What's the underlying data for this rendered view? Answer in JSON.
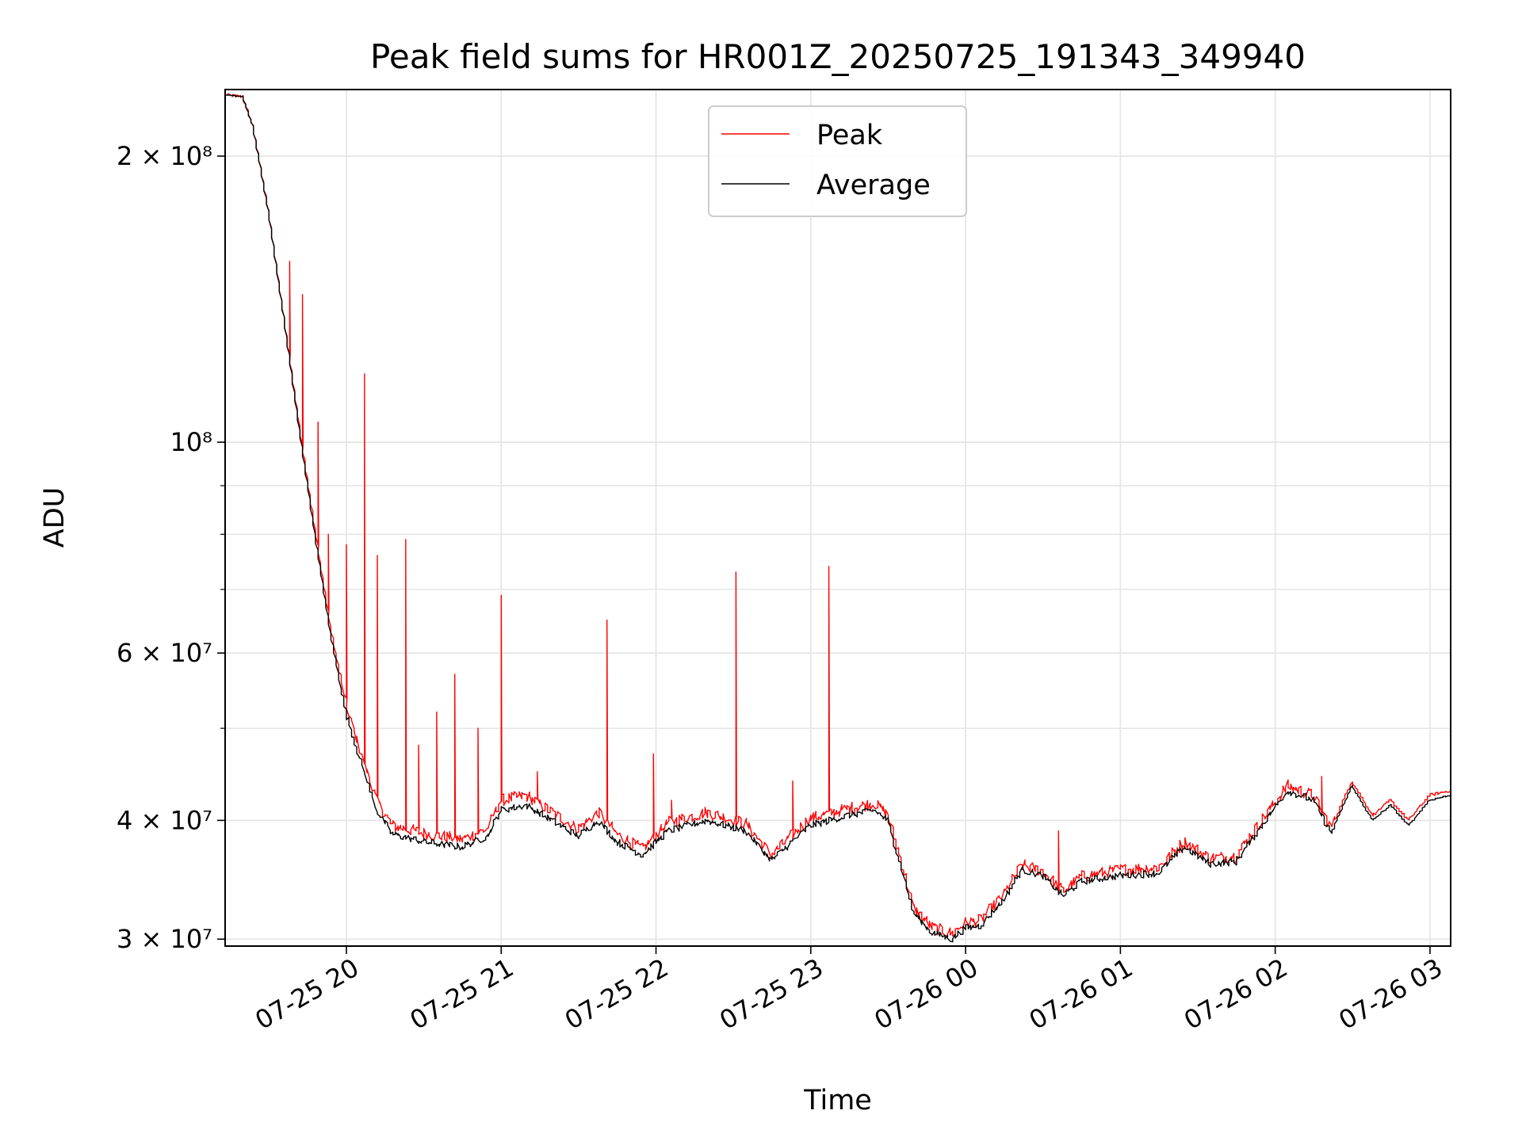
{
  "chart_data": {
    "type": "line",
    "title": "Peak field sums for HR001Z_20250725_191343_349940",
    "xlabel": "Time",
    "ylabel": "ADU",
    "y_scale": "log",
    "ylim": [
      29500000,
      235000000
    ],
    "xlim": [
      "2025-07-25 19:13",
      "2025-07-26 03:08"
    ],
    "grid": true,
    "legend_position": "upper center",
    "x_ticks": [
      {
        "value": "2025-07-25 20:00",
        "label": "07-25 20"
      },
      {
        "value": "2025-07-25 21:00",
        "label": "07-25 21"
      },
      {
        "value": "2025-07-25 22:00",
        "label": "07-25 22"
      },
      {
        "value": "2025-07-25 23:00",
        "label": "07-25 23"
      },
      {
        "value": "2025-07-26 00:00",
        "label": "07-26 00"
      },
      {
        "value": "2025-07-26 01:00",
        "label": "07-26 01"
      },
      {
        "value": "2025-07-26 02:00",
        "label": "07-26 02"
      },
      {
        "value": "2025-07-26 03:00",
        "label": "07-26 03"
      }
    ],
    "y_ticks": [
      {
        "value": 30000000,
        "label": "3 × 10⁷"
      },
      {
        "value": 40000000,
        "label": "4 × 10⁷"
      },
      {
        "value": 60000000,
        "label": "6 × 10⁷"
      },
      {
        "value": 100000000,
        "label": "10⁸"
      },
      {
        "value": 200000000,
        "label": "2 × 10⁸"
      }
    ],
    "y_minor_gridlines": [
      50000000,
      70000000,
      80000000,
      90000000
    ],
    "series": [
      {
        "name": "Average",
        "color": "#000000",
        "points": [
          [
            "2025-07-25 19:13",
            232000000
          ],
          [
            "2025-07-25 19:20",
            231000000
          ],
          [
            "2025-07-25 19:24",
            215000000
          ],
          [
            "2025-07-25 19:30",
            175000000
          ],
          [
            "2025-07-25 19:36",
            135000000
          ],
          [
            "2025-07-25 19:42",
            103000000
          ],
          [
            "2025-07-25 19:48",
            80000000
          ],
          [
            "2025-07-25 19:54",
            63000000
          ],
          [
            "2025-07-25 20:00",
            52000000
          ],
          [
            "2025-07-25 20:06",
            46000000
          ],
          [
            "2025-07-25 20:12",
            41000000
          ],
          [
            "2025-07-25 20:18",
            38700000
          ],
          [
            "2025-07-25 20:30",
            38000000
          ],
          [
            "2025-07-25 20:45",
            37500000
          ],
          [
            "2025-07-25 20:55",
            38500000
          ],
          [
            "2025-07-25 21:00",
            41000000
          ],
          [
            "2025-07-25 21:10",
            41500000
          ],
          [
            "2025-07-25 21:20",
            40000000
          ],
          [
            "2025-07-25 21:30",
            38500000
          ],
          [
            "2025-07-25 21:38",
            40000000
          ],
          [
            "2025-07-25 21:45",
            38000000
          ],
          [
            "2025-07-25 21:55",
            36800000
          ],
          [
            "2025-07-25 22:05",
            39000000
          ],
          [
            "2025-07-25 22:20",
            40000000
          ],
          [
            "2025-07-25 22:35",
            39000000
          ],
          [
            "2025-07-25 22:45",
            36300000
          ],
          [
            "2025-07-25 23:00",
            39500000
          ],
          [
            "2025-07-25 23:15",
            40500000
          ],
          [
            "2025-07-25 23:25",
            41000000
          ],
          [
            "2025-07-25 23:30",
            40000000
          ],
          [
            "2025-07-25 23:35",
            36000000
          ],
          [
            "2025-07-25 23:40",
            32000000
          ],
          [
            "2025-07-25 23:47",
            30500000
          ],
          [
            "2025-07-25 23:55",
            30000000
          ],
          [
            "2025-07-26 00:00",
            30800000
          ],
          [
            "2025-07-26 00:06",
            31000000
          ],
          [
            "2025-07-26 00:15",
            33000000
          ],
          [
            "2025-07-26 00:22",
            35500000
          ],
          [
            "2025-07-26 00:30",
            35000000
          ],
          [
            "2025-07-26 00:38",
            33300000
          ],
          [
            "2025-07-26 00:45",
            34500000
          ],
          [
            "2025-07-26 01:00",
            35000000
          ],
          [
            "2025-07-26 01:15",
            35200000
          ],
          [
            "2025-07-26 01:25",
            37500000
          ],
          [
            "2025-07-26 01:35",
            36000000
          ],
          [
            "2025-07-26 01:45",
            36200000
          ],
          [
            "2025-07-26 01:55",
            39500000
          ],
          [
            "2025-07-26 02:05",
            43000000
          ],
          [
            "2025-07-26 02:15",
            42000000
          ],
          [
            "2025-07-26 02:22",
            38800000
          ],
          [
            "2025-07-26 02:30",
            43500000
          ],
          [
            "2025-07-26 02:38",
            40000000
          ],
          [
            "2025-07-26 02:45",
            41500000
          ],
          [
            "2025-07-26 02:52",
            39500000
          ],
          [
            "2025-07-26 03:00",
            42000000
          ],
          [
            "2025-07-26 03:08",
            42500000
          ]
        ]
      },
      {
        "name": "Peak",
        "color": "#ff0000",
        "points": [
          [
            "2025-07-25 19:13",
            232000000
          ],
          [
            "2025-07-25 19:20",
            231000000
          ],
          [
            "2025-07-25 19:24",
            215000000
          ],
          [
            "2025-07-25 19:30",
            175000000
          ],
          [
            "2025-07-25 19:36",
            135000000
          ],
          [
            "2025-07-25 19:42",
            104000000
          ],
          [
            "2025-07-25 19:48",
            81000000
          ],
          [
            "2025-07-25 19:54",
            64000000
          ],
          [
            "2025-07-25 20:00",
            53000000
          ],
          [
            "2025-07-25 20:06",
            47000000
          ],
          [
            "2025-07-25 20:12",
            42000000
          ],
          [
            "2025-07-25 20:18",
            39500000
          ],
          [
            "2025-07-25 20:30",
            38800000
          ],
          [
            "2025-07-25 20:45",
            38200000
          ],
          [
            "2025-07-25 20:55",
            39200000
          ],
          [
            "2025-07-25 21:00",
            42000000
          ],
          [
            "2025-07-25 21:10",
            42500000
          ],
          [
            "2025-07-25 21:20",
            40800000
          ],
          [
            "2025-07-25 21:30",
            39200000
          ],
          [
            "2025-07-25 21:38",
            40800000
          ],
          [
            "2025-07-25 21:45",
            38700000
          ],
          [
            "2025-07-25 21:55",
            37300000
          ],
          [
            "2025-07-25 22:05",
            39800000
          ],
          [
            "2025-07-25 22:20",
            40800000
          ],
          [
            "2025-07-25 22:35",
            39700000
          ],
          [
            "2025-07-25 22:45",
            36800000
          ],
          [
            "2025-07-25 23:00",
            40200000
          ],
          [
            "2025-07-25 23:15",
            41200000
          ],
          [
            "2025-07-25 23:25",
            41700000
          ],
          [
            "2025-07-25 23:30",
            40600000
          ],
          [
            "2025-07-25 23:35",
            36500000
          ],
          [
            "2025-07-25 23:40",
            32400000
          ],
          [
            "2025-07-25 23:47",
            30900000
          ],
          [
            "2025-07-25 23:55",
            30400000
          ],
          [
            "2025-07-26 00:00",
            31200000
          ],
          [
            "2025-07-26 00:06",
            31400000
          ],
          [
            "2025-07-26 00:15",
            33400000
          ],
          [
            "2025-07-26 00:22",
            35900000
          ],
          [
            "2025-07-26 00:30",
            35400000
          ],
          [
            "2025-07-26 00:38",
            33700000
          ],
          [
            "2025-07-26 00:45",
            34900000
          ],
          [
            "2025-07-26 01:00",
            35500000
          ],
          [
            "2025-07-26 01:15",
            35700000
          ],
          [
            "2025-07-26 01:25",
            38000000
          ],
          [
            "2025-07-26 01:35",
            36500000
          ],
          [
            "2025-07-26 01:45",
            36700000
          ],
          [
            "2025-07-26 01:55",
            40000000
          ],
          [
            "2025-07-26 02:05",
            43500000
          ],
          [
            "2025-07-26 02:15",
            42500000
          ],
          [
            "2025-07-26 02:22",
            39300000
          ],
          [
            "2025-07-26 02:30",
            44000000
          ],
          [
            "2025-07-26 02:38",
            40500000
          ],
          [
            "2025-07-26 02:45",
            42000000
          ],
          [
            "2025-07-26 02:52",
            40000000
          ],
          [
            "2025-07-26 03:00",
            42500000
          ],
          [
            "2025-07-26 03:08",
            43000000
          ]
        ],
        "spikes": [
          [
            "2025-07-25 19:38",
            155000000
          ],
          [
            "2025-07-25 19:43",
            143000000
          ],
          [
            "2025-07-25 19:49",
            105000000
          ],
          [
            "2025-07-25 19:53",
            80000000
          ],
          [
            "2025-07-25 20:00",
            78000000
          ],
          [
            "2025-07-25 20:07",
            118000000
          ],
          [
            "2025-07-25 20:12",
            76000000
          ],
          [
            "2025-07-25 20:23",
            79000000
          ],
          [
            "2025-07-25 20:28",
            48000000
          ],
          [
            "2025-07-25 20:35",
            52000000
          ],
          [
            "2025-07-25 20:42",
            57000000
          ],
          [
            "2025-07-25 20:51",
            50000000
          ],
          [
            "2025-07-25 21:00",
            69000000
          ],
          [
            "2025-07-25 21:14",
            45000000
          ],
          [
            "2025-07-25 21:41",
            65000000
          ],
          [
            "2025-07-25 21:59",
            47000000
          ],
          [
            "2025-07-25 22:06",
            42000000
          ],
          [
            "2025-07-25 22:31",
            73000000
          ],
          [
            "2025-07-25 22:53",
            44000000
          ],
          [
            "2025-07-25 23:07",
            74000000
          ],
          [
            "2025-07-26 00:36",
            39000000
          ],
          [
            "2025-07-26 02:18",
            44500000
          ]
        ]
      }
    ]
  }
}
